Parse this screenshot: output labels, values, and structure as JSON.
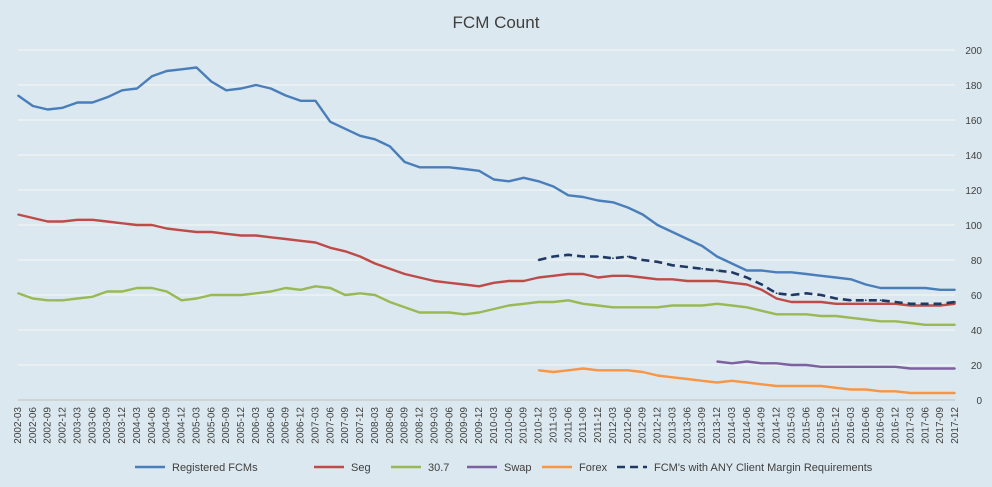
{
  "chart_data": {
    "type": "line",
    "title": "FCM Count",
    "xlabel": "",
    "ylabel": "",
    "ylim": [
      0,
      200
    ],
    "yticks": [
      0,
      20,
      40,
      60,
      80,
      100,
      120,
      140,
      160,
      180,
      200
    ],
    "grid": true,
    "legend_position": "bottom",
    "x": [
      "2002-03",
      "2002-06",
      "2002-09",
      "2002-12",
      "2003-03",
      "2003-06",
      "2003-09",
      "2003-12",
      "2004-03",
      "2004-06",
      "2004-09",
      "2004-12",
      "2005-03",
      "2005-06",
      "2005-09",
      "2005-12",
      "2006-03",
      "2006-06",
      "2006-09",
      "2006-12",
      "2007-03",
      "2007-06",
      "2007-09",
      "2007-12",
      "2008-03",
      "2008-06",
      "2008-09",
      "2008-12",
      "2009-03",
      "2009-06",
      "2009-09",
      "2009-12",
      "2010-03",
      "2010-06",
      "2010-09",
      "2010-12",
      "2011-03",
      "2011-06",
      "2011-09",
      "2011-12",
      "2012-03",
      "2012-06",
      "2012-09",
      "2012-12",
      "2013-03",
      "2013-06",
      "2013-09",
      "2013-12",
      "2014-03",
      "2014-06",
      "2014-09",
      "2014-12",
      "2015-03",
      "2015-06",
      "2015-09",
      "2015-12",
      "2016-03",
      "2016-06",
      "2016-09",
      "2016-12",
      "2017-03",
      "2017-06",
      "2017-09",
      "2017-12"
    ],
    "series": [
      {
        "name": "Registered FCMs",
        "color": "#4a7ebb",
        "dash": false,
        "values": [
          174,
          168,
          166,
          167,
          170,
          170,
          173,
          177,
          178,
          185,
          188,
          189,
          190,
          182,
          177,
          178,
          180,
          178,
          174,
          171,
          171,
          159,
          155,
          151,
          149,
          145,
          136,
          133,
          133,
          133,
          132,
          131,
          126,
          125,
          127,
          125,
          122,
          117,
          116,
          114,
          113,
          110,
          106,
          100,
          96,
          92,
          88,
          82,
          78,
          74,
          74,
          73,
          73,
          72,
          71,
          70,
          69,
          66,
          64,
          64,
          64,
          64,
          63,
          63
        ]
      },
      {
        "name": "Seg",
        "color": "#be4b48",
        "dash": false,
        "values": [
          106,
          104,
          102,
          102,
          103,
          103,
          102,
          101,
          100,
          100,
          98,
          97,
          96,
          96,
          95,
          94,
          94,
          93,
          92,
          91,
          90,
          87,
          85,
          82,
          78,
          75,
          72,
          70,
          68,
          67,
          66,
          65,
          67,
          68,
          68,
          70,
          71,
          72,
          72,
          70,
          71,
          71,
          70,
          69,
          69,
          68,
          68,
          68,
          67,
          66,
          63,
          58,
          56,
          56,
          56,
          55,
          55,
          55,
          55,
          55,
          54,
          54,
          54,
          55
        ]
      },
      {
        "name": "30.7",
        "color": "#98b954",
        "dash": false,
        "values": [
          61,
          58,
          57,
          57,
          58,
          59,
          62,
          62,
          64,
          64,
          62,
          57,
          58,
          60,
          60,
          60,
          61,
          62,
          64,
          63,
          65,
          64,
          60,
          61,
          60,
          56,
          53,
          50,
          50,
          50,
          49,
          50,
          52,
          54,
          55,
          56,
          56,
          57,
          55,
          54,
          53,
          53,
          53,
          53,
          54,
          54,
          54,
          55,
          54,
          53,
          51,
          49,
          49,
          49,
          48,
          48,
          47,
          46,
          45,
          45,
          44,
          43,
          43,
          43
        ]
      },
      {
        "name": "Swap",
        "color": "#7d60a0",
        "dash": false,
        "values": [
          null,
          null,
          null,
          null,
          null,
          null,
          null,
          null,
          null,
          null,
          null,
          null,
          null,
          null,
          null,
          null,
          null,
          null,
          null,
          null,
          null,
          null,
          null,
          null,
          null,
          null,
          null,
          null,
          null,
          null,
          null,
          null,
          null,
          null,
          null,
          null,
          null,
          null,
          null,
          null,
          null,
          null,
          null,
          null,
          null,
          null,
          null,
          22,
          21,
          22,
          21,
          21,
          20,
          20,
          19,
          19,
          19,
          19,
          19,
          19,
          18,
          18,
          18,
          18
        ]
      },
      {
        "name": "Forex",
        "color": "#f79646",
        "dash": false,
        "values": [
          null,
          null,
          null,
          null,
          null,
          null,
          null,
          null,
          null,
          null,
          null,
          null,
          null,
          null,
          null,
          null,
          null,
          null,
          null,
          null,
          null,
          null,
          null,
          null,
          null,
          null,
          null,
          null,
          null,
          null,
          null,
          null,
          null,
          null,
          null,
          17,
          16,
          17,
          18,
          17,
          17,
          17,
          16,
          14,
          13,
          12,
          11,
          10,
          11,
          10,
          9,
          8,
          8,
          8,
          8,
          7,
          6,
          6,
          5,
          5,
          4,
          4,
          4,
          4
        ]
      },
      {
        "name": "FCM's with ANY Client Margin Requirements",
        "color": "#1f3864",
        "dash": true,
        "values": [
          null,
          null,
          null,
          null,
          null,
          null,
          null,
          null,
          null,
          null,
          null,
          null,
          null,
          null,
          null,
          null,
          null,
          null,
          null,
          null,
          null,
          null,
          null,
          null,
          null,
          null,
          null,
          null,
          null,
          null,
          null,
          null,
          null,
          null,
          null,
          80,
          82,
          83,
          82,
          82,
          81,
          82,
          80,
          79,
          77,
          76,
          75,
          74,
          73,
          70,
          66,
          61,
          60,
          61,
          60,
          58,
          57,
          57,
          57,
          56,
          55,
          55,
          55,
          56
        ]
      }
    ]
  }
}
